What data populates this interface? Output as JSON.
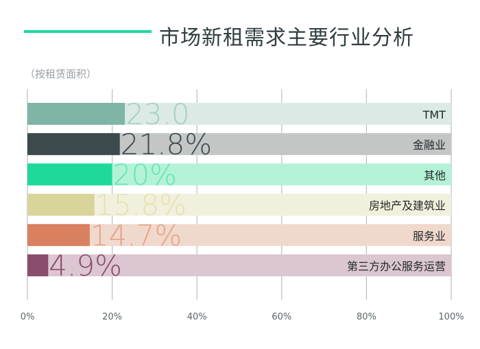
{
  "title": "市场新租需求主要行业分析",
  "subtitle": "（按租赁面积）",
  "chart_data": {
    "type": "bar",
    "orientation": "horizontal",
    "unit": "%",
    "xlim": [
      0,
      100
    ],
    "x_ticks": [
      "0%",
      "20%",
      "40%",
      "60%",
      "80%",
      "100%"
    ],
    "grid": true,
    "categories": [
      "TMT",
      "金融业",
      "其他",
      "房地产及建筑业",
      "服务业",
      "第三方办公服务运营"
    ],
    "values": [
      23.0,
      21.8,
      20,
      15.8,
      14.7,
      4.9
    ],
    "value_labels": [
      "23.0",
      "21.8%",
      "20%",
      "15.8%",
      "14.7%",
      "4.9%"
    ],
    "colors": {
      "bar": [
        "#7fb5a6",
        "#3d4a4d",
        "#1ed99a",
        "#d9d49a",
        "#d98060",
        "#8a4d6b"
      ],
      "track": [
        "#dbeae5",
        "#c4c6c6",
        "#b4f2d8",
        "#f1f0dc",
        "#f1d8cc",
        "#dcc6d1"
      ],
      "label": [
        "#a6cfc3",
        "#3d4a4d",
        "#66e6b8",
        "#e5e1b3",
        "#e3a489",
        "#8a4d6b"
      ],
      "axis": "#b9bdbf",
      "tick_text": "#5a6366",
      "category_text": "#222a2c"
    }
  }
}
